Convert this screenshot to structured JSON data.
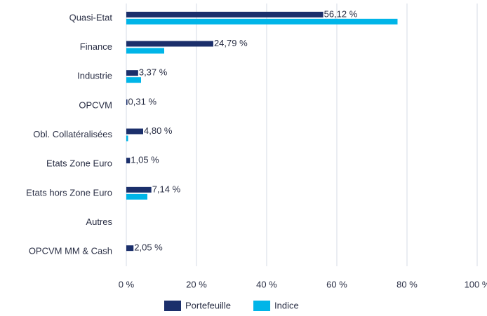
{
  "chart_data": {
    "type": "bar",
    "orientation": "horizontal",
    "categories": [
      "Quasi-Etat",
      "Finance",
      "Industrie",
      "OPCVM",
      "Obl. Collatéralisées",
      "Etats Zone Euro",
      "Etats hors Zone Euro",
      "Autres",
      "OPCVM MM & Cash"
    ],
    "series": [
      {
        "name": "Portefeuille",
        "color": "#1b2f6b",
        "values": [
          56.12,
          24.79,
          3.37,
          0.31,
          4.8,
          1.05,
          7.14,
          null,
          2.05
        ],
        "value_labels": [
          "56,12 %",
          "24,79 %",
          "3,37 %",
          "0,31 %",
          "4,80 %",
          "1,05 %",
          "7,14 %",
          null,
          "2,05 %"
        ]
      },
      {
        "name": "Indice",
        "color": "#00b5e8",
        "values": [
          77.3,
          10.8,
          4.2,
          0,
          0.5,
          0,
          6,
          0,
          0
        ]
      }
    ],
    "xlim": [
      0,
      100
    ],
    "xticks": [
      {
        "value": 0,
        "label": "0 %"
      },
      {
        "value": 20,
        "label": "20 %"
      },
      {
        "value": 40,
        "label": "40 %"
      },
      {
        "value": 60,
        "label": "60 %"
      },
      {
        "value": 80,
        "label": "80 %"
      },
      {
        "value": 100,
        "label": "100 %"
      }
    ],
    "grid": true,
    "legend": "bottom"
  }
}
